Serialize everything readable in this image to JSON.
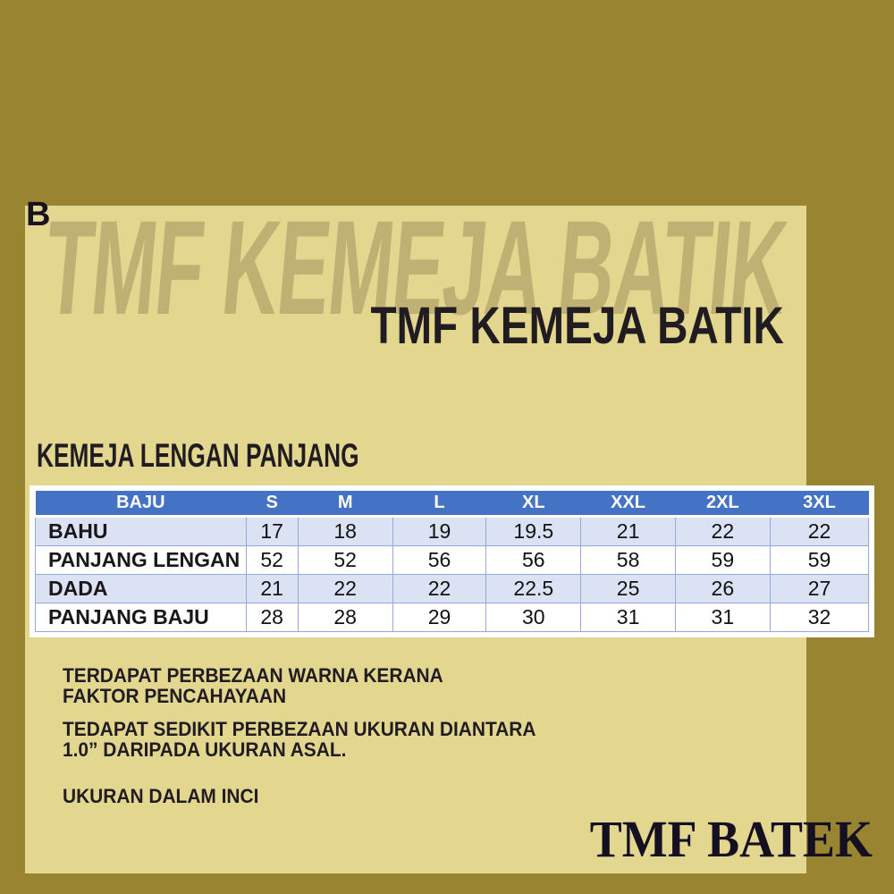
{
  "page": {
    "variant_label": "B",
    "watermark": "TMF KEMEJA BATIK",
    "title": "TMF KEMEJA BATIK",
    "section_heading": "KEMEJA LENGAN PANJANG",
    "brand": "TMF BATEK"
  },
  "size_table": {
    "columns": [
      "BAJU",
      "S",
      "M",
      "L",
      "XL",
      "XXL",
      "2XL",
      "3XL"
    ],
    "rows": [
      {
        "label": "BAHU",
        "values": [
          "17",
          "18",
          "19",
          "19.5",
          "21",
          "22",
          "22"
        ]
      },
      {
        "label": "PANJANG LENGAN",
        "values": [
          "52",
          "52",
          "56",
          "56",
          "58",
          "59",
          "59"
        ]
      },
      {
        "label": "DADA",
        "values": [
          "21",
          "22",
          "22",
          "22.5",
          "25",
          "26",
          "27"
        ]
      },
      {
        "label": "PANJANG BAJU",
        "values": [
          "28",
          "28",
          "29",
          "30",
          "31",
          "31",
          "32"
        ]
      }
    ]
  },
  "notes": [
    {
      "lines": [
        "TERDAPAT PERBEZAAN WARNA KERANA",
        "FAKTOR PENCAHAYAAN"
      ]
    },
    {
      "lines": [
        "TEDAPAT SEDIKIT PERBEZAAN UKURAN DIANTARA",
        "1.0” DARIPADA UKURAN ASAL."
      ]
    },
    {
      "lines": [
        "UKURAN DALAM INCI"
      ]
    }
  ],
  "colors": {
    "background": "#998431",
    "panel": "#e3d78f",
    "watermark": "#bfb173",
    "text": "#211c21",
    "table_header": "#4472c4",
    "table_border": "#95aad8",
    "row_alt": "#dbe2f3",
    "brand": "#141021"
  }
}
